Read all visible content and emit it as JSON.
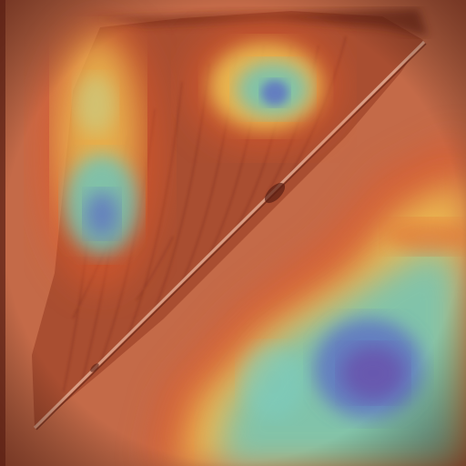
{
  "image": {
    "kind": "heatmap-overlay-photo",
    "subject": "triangular-leaf-specimen",
    "colors": {
      "background": "#c46a48",
      "edge_dark": "#6e2618",
      "leaf_tissue": "#a4492e",
      "vein": "#7d2a1a",
      "heat_low": "#e25a2a",
      "heat_mid_yellow": "#f2d45a",
      "heat_mid_cyan": "#5ec8c8",
      "heat_high_blue": "#5a68c8",
      "heat_peak_purple": "#6a4aa8"
    }
  }
}
